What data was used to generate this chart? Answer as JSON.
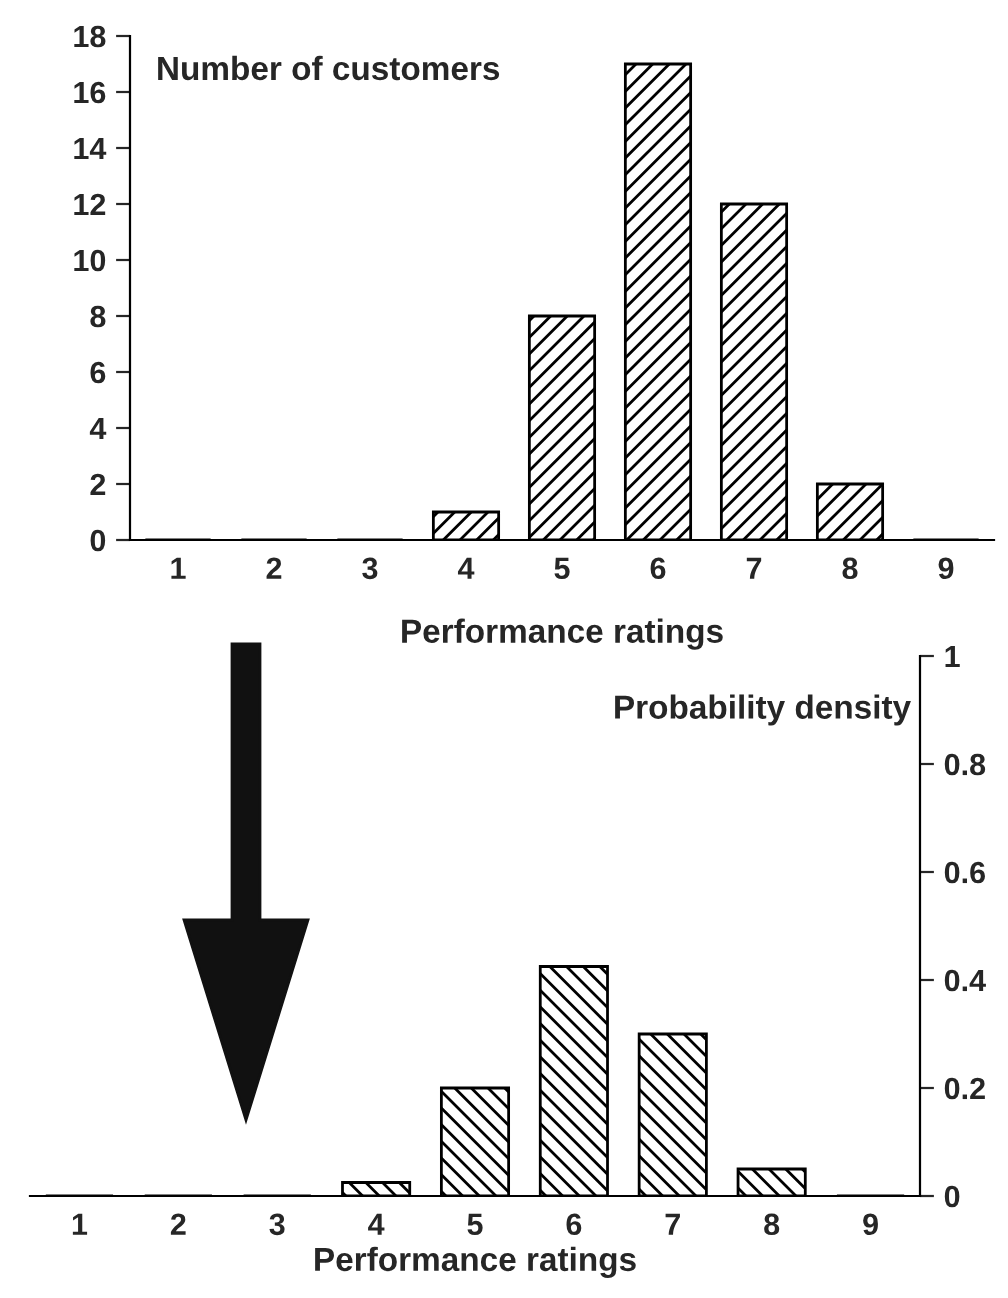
{
  "chart_data": [
    {
      "type": "bar",
      "ylabel": "Number of customers",
      "xlabel": "Performance ratings",
      "categories": [
        "1",
        "2",
        "3",
        "4",
        "5",
        "6",
        "7",
        "8",
        "9"
      ],
      "series": [
        {
          "color": "#000000",
          "values": [
            0,
            0,
            0,
            1,
            8,
            17,
            12,
            2,
            0
          ]
        }
      ],
      "ylim": [
        0,
        18
      ],
      "yticks": [
        0,
        2,
        4,
        6,
        8,
        10,
        12,
        14,
        16,
        18
      ],
      "grid": false,
      "legend": false
    },
    {
      "type": "bar",
      "ylabel": "Probability density",
      "xlabel": "Performance ratings",
      "categories": [
        "1",
        "2",
        "3",
        "4",
        "5",
        "6",
        "7",
        "8",
        "9"
      ],
      "series": [
        {
          "color": "#000000",
          "axis": "y2",
          "values": [
            0,
            0,
            0,
            0.025,
            0.2,
            0.425,
            0.3,
            0.05,
            0
          ]
        }
      ],
      "y2lim": [
        0,
        1
      ],
      "y2ticks": [
        0,
        0.2,
        0.4,
        0.6,
        0.8,
        1
      ],
      "grid": false,
      "legend": false
    }
  ]
}
